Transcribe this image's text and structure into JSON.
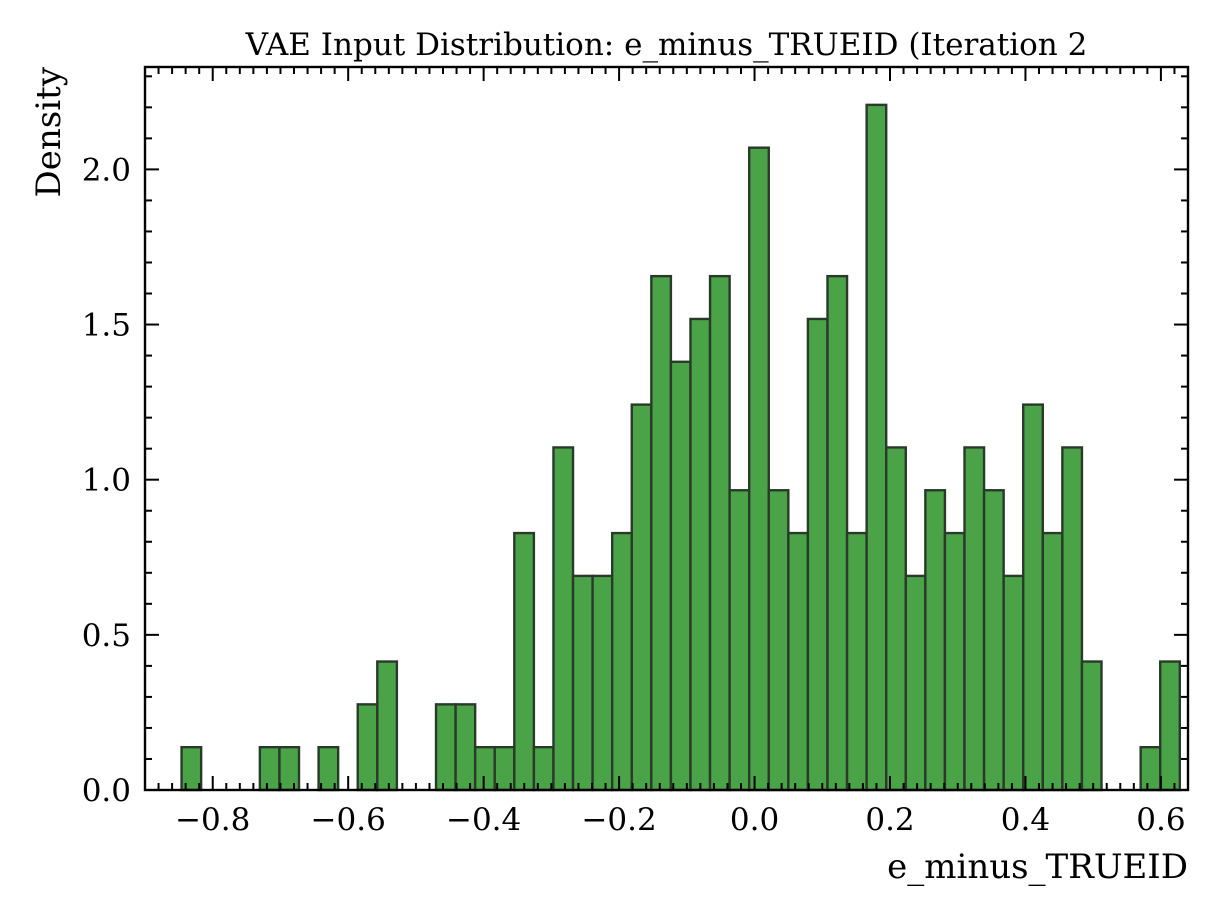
{
  "chart_data": {
    "type": "bar",
    "title": "VAE Input Distribution: e_minus_TRUEID (Iteration 2",
    "xlabel": "e_minus_TRUEID",
    "ylabel": "Density",
    "xlim": [
      -0.9,
      0.64
    ],
    "ylim": [
      0,
      2.33
    ],
    "grid": false,
    "legend": "none",
    "bar_color": "#4aa447",
    "edge_color": "#2a3a2a",
    "x_ticks": [
      -0.8,
      -0.6,
      -0.4,
      -0.2,
      0.0,
      0.2,
      0.4,
      0.6
    ],
    "x_tick_labels": [
      "−0.8",
      "−0.6",
      "−0.4",
      "−0.2",
      "0.0",
      "0.2",
      "0.4",
      "0.6"
    ],
    "y_ticks": [
      0.0,
      0.5,
      1.0,
      1.5,
      2.0
    ],
    "y_tick_labels": [
      "0.0",
      "0.5",
      "1.0",
      "1.5",
      "2.0"
    ],
    "bins": {
      "start": -0.846,
      "width": 0.0289,
      "values": [
        0.138,
        0,
        0,
        0,
        0.138,
        0.138,
        0,
        0.138,
        0,
        0.276,
        0.414,
        0,
        0,
        0.276,
        0.276,
        0.138,
        0.138,
        0.828,
        0.138,
        1.104,
        0.69,
        0.69,
        0.828,
        1.242,
        1.656,
        1.38,
        1.518,
        1.656,
        0.966,
        2.07,
        0.966,
        0.828,
        1.518,
        1.656,
        0.828,
        2.208,
        1.104,
        0.69,
        0.966,
        0.828,
        1.104,
        0.966,
        0.69,
        1.242,
        0.828,
        1.104,
        0.414,
        0,
        0,
        0.138,
        0.414
      ]
    }
  }
}
